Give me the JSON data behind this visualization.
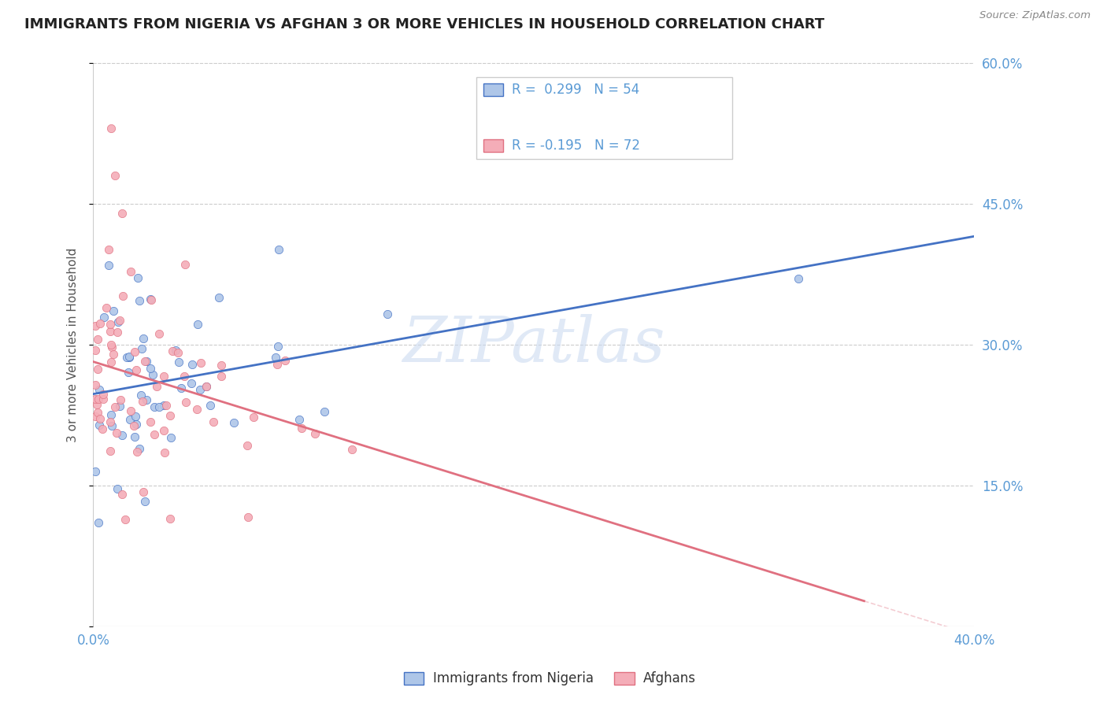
{
  "title": "IMMIGRANTS FROM NIGERIA VS AFGHAN 3 OR MORE VEHICLES IN HOUSEHOLD CORRELATION CHART",
  "source": "Source: ZipAtlas.com",
  "ylabel": "3 or more Vehicles in Household",
  "x_min": 0.0,
  "x_max": 0.4,
  "y_min": 0.0,
  "y_max": 0.6,
  "right_yticklabels": [
    "15.0%",
    "30.0%",
    "45.0%",
    "60.0%"
  ],
  "right_yticks": [
    0.15,
    0.3,
    0.45,
    0.6
  ],
  "R_nigeria": 0.299,
  "N_nigeria": 54,
  "R_afghan": -0.195,
  "N_afghan": 72,
  "color_nigeria_fill": "#aec6e8",
  "color_nigeria_edge": "#4472c4",
  "color_afghan_fill": "#f4adb8",
  "color_afghan_edge": "#e07080",
  "color_nigeria_line": "#4472c4",
  "color_afghan_line": "#e07080",
  "watermark": "ZIPatlas",
  "watermark_color": "#c8d8f0",
  "grid_color": "#cccccc",
  "title_color": "#222222",
  "axis_label_color": "#5b9bd5",
  "legend_label_left": "Immigrants from Nigeria",
  "legend_label_right": "Afghans"
}
